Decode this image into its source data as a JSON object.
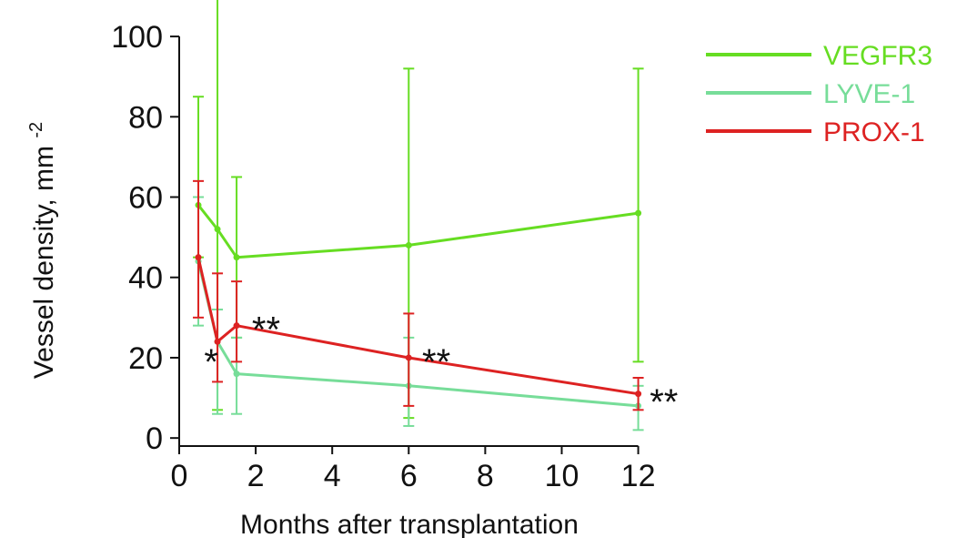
{
  "chart_data": {
    "type": "line",
    "title": "",
    "xlabel": "Months after transplantation",
    "ylabel_main": "Vessel density, mm",
    "ylabel_sup": "-2",
    "xlim": [
      0,
      12.2
    ],
    "ylim": [
      -2,
      105
    ],
    "x_ticks": [
      0,
      2,
      4,
      6,
      8,
      10,
      12
    ],
    "y_ticks": [
      0,
      20,
      40,
      60,
      80,
      100
    ],
    "grid": false,
    "legend_position": "top-right",
    "series": [
      {
        "name": "VEGFR3",
        "color": "#66dd22",
        "points": [
          {
            "x": 0.5,
            "y": 58,
            "err_low": 45,
            "err_high": 85
          },
          {
            "x": 1,
            "y": 52,
            "err_low": 7,
            "err_high": 110
          },
          {
            "x": 1.5,
            "y": 45,
            "err_low": 25,
            "err_high": 65
          },
          {
            "x": 6,
            "y": 48,
            "err_low": 5,
            "err_high": 92
          },
          {
            "x": 12,
            "y": 56,
            "err_low": 19,
            "err_high": 92
          }
        ]
      },
      {
        "name": "LYVE-1",
        "color": "#77dd99",
        "points": [
          {
            "x": 0.5,
            "y": 44,
            "err_low": 28,
            "err_high": 60
          },
          {
            "x": 1,
            "y": 24,
            "err_low": 6,
            "err_high": 32
          },
          {
            "x": 1.5,
            "y": 16,
            "err_low": 6,
            "err_high": 25
          },
          {
            "x": 6,
            "y": 13,
            "err_low": 3,
            "err_high": 25
          },
          {
            "x": 12,
            "y": 8,
            "err_low": 2,
            "err_high": 13
          }
        ]
      },
      {
        "name": "PROX-1",
        "color": "#dd2222",
        "points": [
          {
            "x": 0.5,
            "y": 45,
            "err_low": 30,
            "err_high": 64
          },
          {
            "x": 1,
            "y": 24,
            "err_low": 14,
            "err_high": 41
          },
          {
            "x": 1.5,
            "y": 28,
            "err_low": 19,
            "err_high": 39
          },
          {
            "x": 6,
            "y": 20,
            "err_low": 8,
            "err_high": 31
          },
          {
            "x": 12,
            "y": 11,
            "err_low": 7,
            "err_high": 15
          }
        ]
      }
    ],
    "annotations": [
      {
        "text": "*",
        "x": 0.65,
        "y": 20
      },
      {
        "text": "**",
        "x": 1.9,
        "y": 28
      },
      {
        "text": "**",
        "x": 6.35,
        "y": 20
      },
      {
        "text": "**",
        "x": 12.3,
        "y": 10
      }
    ]
  }
}
